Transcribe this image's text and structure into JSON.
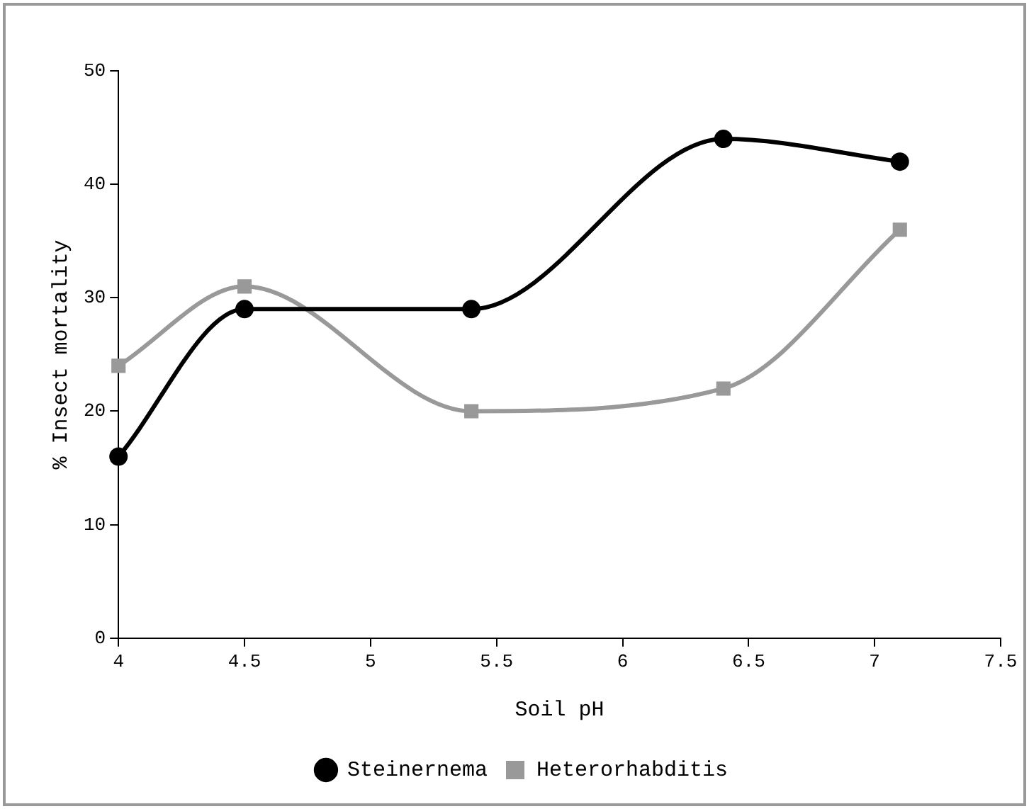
{
  "chart_data": {
    "type": "line",
    "xlabel": "Soil pH",
    "ylabel": "% Insect mortality",
    "x": [
      4,
      4.5,
      5.4,
      6.4,
      7.1
    ],
    "series": [
      {
        "name": "Steinernema",
        "color": "#000000",
        "marker": "circle",
        "values": [
          16,
          29,
          29,
          44,
          42
        ]
      },
      {
        "name": "Heterorhabditis",
        "color": "#999999",
        "marker": "square",
        "values": [
          24,
          31,
          20,
          22,
          36
        ]
      }
    ],
    "xlim": [
      4,
      7.5
    ],
    "xticks": [
      4,
      4.5,
      5,
      5.5,
      6,
      6.5,
      7,
      7.5
    ],
    "ylim": [
      0,
      50
    ],
    "yticks": [
      0,
      10,
      20,
      30,
      40,
      50
    ],
    "grid": false,
    "legend": "bottom",
    "line_style": "solid"
  }
}
